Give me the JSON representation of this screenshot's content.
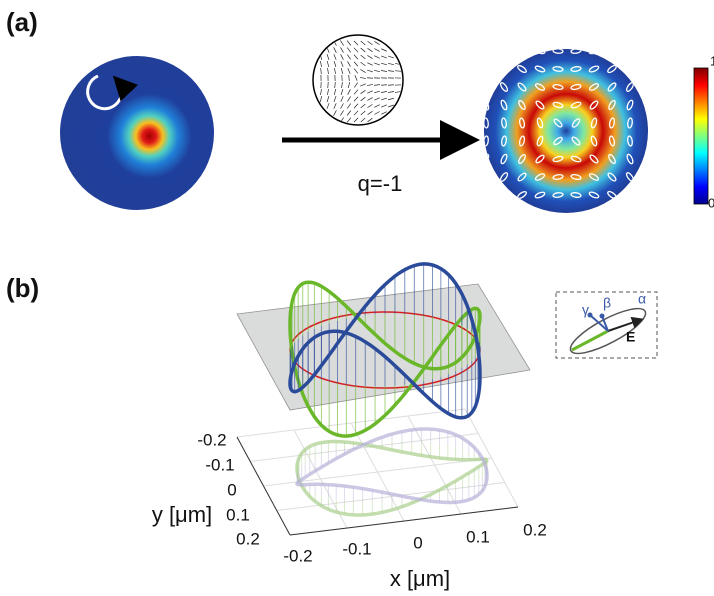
{
  "panel_a": {
    "label": "(a)",
    "operator_label": "q=-1",
    "colorbar": {
      "max_label": "1",
      "min_label": "0"
    }
  },
  "panel_b": {
    "label": "(b)",
    "inset": {
      "gamma": "γ",
      "beta": "β",
      "alpha": "α",
      "field": "E"
    },
    "x_axis": {
      "title": "x [μm]",
      "ticks": [
        "-0.2",
        "-0.1",
        "0",
        "0.1",
        "0.2"
      ]
    },
    "y_axis": {
      "title": "y [μm]",
      "ticks": [
        "-0.2",
        "-0.1",
        "0",
        "0.1",
        "0.2"
      ]
    }
  }
}
